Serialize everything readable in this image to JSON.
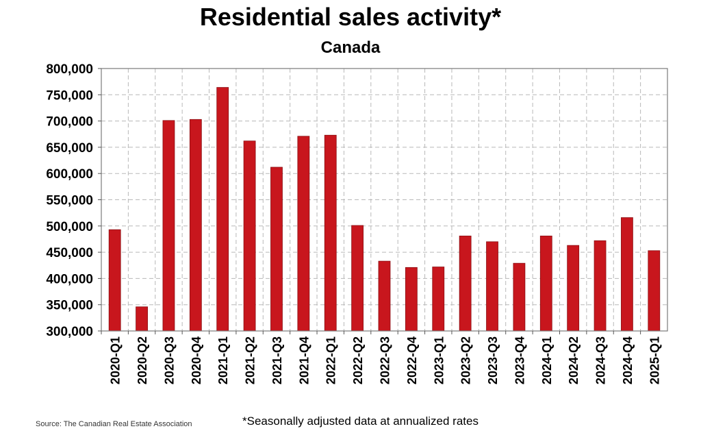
{
  "chart_data": {
    "type": "bar",
    "title": "Residential sales activity*",
    "subtitle": "Canada",
    "categories": [
      "2020-Q1",
      "2020-Q2",
      "2020-Q3",
      "2020-Q4",
      "2021-Q1",
      "2021-Q2",
      "2021-Q3",
      "2021-Q4",
      "2022-Q1",
      "2022-Q2",
      "2022-Q3",
      "2022-Q4",
      "2023-Q1",
      "2023-Q2",
      "2023-Q3",
      "2023-Q4",
      "2024-Q1",
      "2024-Q2",
      "2024-Q3",
      "2024-Q4",
      "2025-Q1"
    ],
    "values": [
      493000,
      346000,
      701000,
      703000,
      764000,
      662000,
      612000,
      671000,
      673000,
      501000,
      433000,
      421000,
      422000,
      481000,
      470000,
      429000,
      481000,
      463000,
      472000,
      516000,
      453000
    ],
    "ylim": [
      300000,
      800000
    ],
    "yticks": [
      300000,
      350000,
      400000,
      450000,
      500000,
      550000,
      600000,
      650000,
      700000,
      750000,
      800000
    ],
    "ytick_labels": [
      "300,000",
      "350,000",
      "400,000",
      "450,000",
      "500,000",
      "550,000",
      "600,000",
      "650,000",
      "700,000",
      "750,000",
      "800,000"
    ],
    "xlabel": "",
    "ylabel": "",
    "grid": true,
    "bar_color": "#c8161d",
    "footnote": "*Seasonally adjusted data at annualized rates",
    "source": "Source: The Canadian Real Estate Association"
  }
}
